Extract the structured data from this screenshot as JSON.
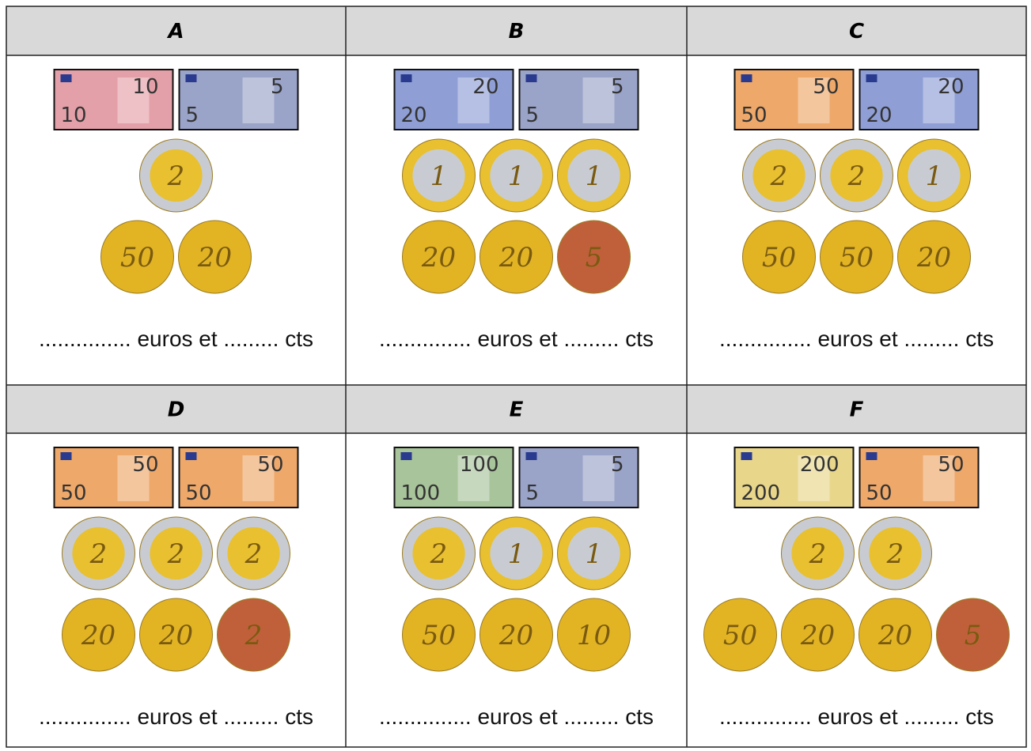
{
  "cells": [
    {
      "letter": "A",
      "notes": [
        {
          "label": "10",
          "color": "#e3a0a8"
        },
        {
          "label": "5",
          "color": "#9aa3c8"
        }
      ],
      "coins": [
        [
          {
            "label": "2",
            "color": "#e8c030",
            "ring": "#c8ccd2"
          }
        ],
        [
          {
            "label": "50",
            "color": "#e2b424",
            "ring": "#e2b424"
          },
          {
            "label": "20",
            "color": "#e2b424",
            "ring": "#e2b424"
          }
        ]
      ],
      "answer": "............... euros et ......... cts"
    },
    {
      "letter": "B",
      "notes": [
        {
          "label": "20",
          "color": "#8f9fd6"
        },
        {
          "label": "5",
          "color": "#9aa3c8"
        }
      ],
      "coins": [
        [
          {
            "label": "1",
            "color": "#c8ccd2",
            "ring": "#e8c030"
          },
          {
            "label": "1",
            "color": "#c8ccd2",
            "ring": "#e8c030"
          },
          {
            "label": "1",
            "color": "#c8ccd2",
            "ring": "#e8c030"
          }
        ],
        [
          {
            "label": "20",
            "color": "#e2b424",
            "ring": "#e2b424"
          },
          {
            "label": "20",
            "color": "#e2b424",
            "ring": "#e2b424"
          },
          {
            "label": "5",
            "color": "#c0603a",
            "ring": "#c0603a"
          }
        ]
      ],
      "answer": "............... euros et ......... cts"
    },
    {
      "letter": "C",
      "notes": [
        {
          "label": "50",
          "color": "#eea86a"
        },
        {
          "label": "20",
          "color": "#8f9fd6"
        }
      ],
      "coins": [
        [
          {
            "label": "2",
            "color": "#e8c030",
            "ring": "#c8ccd2"
          },
          {
            "label": "2",
            "color": "#e8c030",
            "ring": "#c8ccd2"
          },
          {
            "label": "1",
            "color": "#c8ccd2",
            "ring": "#e8c030"
          }
        ],
        [
          {
            "label": "50",
            "color": "#e2b424",
            "ring": "#e2b424"
          },
          {
            "label": "50",
            "color": "#e2b424",
            "ring": "#e2b424"
          },
          {
            "label": "20",
            "color": "#e2b424",
            "ring": "#e2b424"
          }
        ]
      ],
      "answer": "............... euros et ......... cts"
    },
    {
      "letter": "D",
      "notes": [
        {
          "label": "50",
          "color": "#eea86a"
        },
        {
          "label": "50",
          "color": "#eea86a"
        }
      ],
      "coins": [
        [
          {
            "label": "2",
            "color": "#e8c030",
            "ring": "#c8ccd2"
          },
          {
            "label": "2",
            "color": "#e8c030",
            "ring": "#c8ccd2"
          },
          {
            "label": "2",
            "color": "#e8c030",
            "ring": "#c8ccd2"
          }
        ],
        [
          {
            "label": "20",
            "color": "#e2b424",
            "ring": "#e2b424"
          },
          {
            "label": "20",
            "color": "#e2b424",
            "ring": "#e2b424"
          },
          {
            "label": "2",
            "color": "#c0603a",
            "ring": "#c0603a"
          }
        ]
      ],
      "answer": "............... euros et ......... cts"
    },
    {
      "letter": "E",
      "notes": [
        {
          "label": "100",
          "color": "#a8c49a"
        },
        {
          "label": "5",
          "color": "#9aa3c8"
        }
      ],
      "coins": [
        [
          {
            "label": "2",
            "color": "#e8c030",
            "ring": "#c8ccd2"
          },
          {
            "label": "1",
            "color": "#c8ccd2",
            "ring": "#e8c030"
          },
          {
            "label": "1",
            "color": "#c8ccd2",
            "ring": "#e8c030"
          }
        ],
        [
          {
            "label": "50",
            "color": "#e2b424",
            "ring": "#e2b424"
          },
          {
            "label": "20",
            "color": "#e2b424",
            "ring": "#e2b424"
          },
          {
            "label": "10",
            "color": "#e2b424",
            "ring": "#e2b424"
          }
        ]
      ],
      "answer": "............... euros et ......... cts"
    },
    {
      "letter": "F",
      "notes": [
        {
          "label": "200",
          "color": "#e8d68a"
        },
        {
          "label": "50",
          "color": "#eea86a"
        }
      ],
      "coins": [
        [
          {
            "label": "2",
            "color": "#e8c030",
            "ring": "#c8ccd2"
          },
          {
            "label": "2",
            "color": "#e8c030",
            "ring": "#c8ccd2"
          }
        ],
        [
          {
            "label": "50",
            "color": "#e2b424",
            "ring": "#e2b424"
          },
          {
            "label": "20",
            "color": "#e2b424",
            "ring": "#e2b424"
          },
          {
            "label": "20",
            "color": "#e2b424",
            "ring": "#e2b424"
          },
          {
            "label": "5",
            "color": "#c0603a",
            "ring": "#c0603a"
          }
        ]
      ],
      "answer": "............... euros et ......... cts"
    }
  ]
}
